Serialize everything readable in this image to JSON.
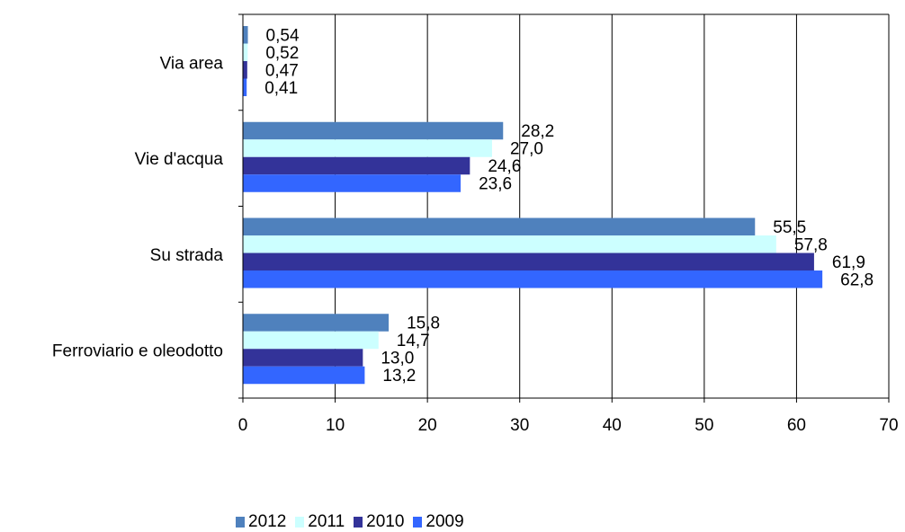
{
  "chart_data": {
    "type": "bar",
    "orientation": "horizontal",
    "title": "",
    "xlabel": "",
    "ylabel": "",
    "xlim": [
      0,
      70
    ],
    "x_ticks": [
      0,
      10,
      20,
      30,
      40,
      50,
      60,
      70
    ],
    "grid": "vertical",
    "legend_position": "bottom",
    "categories": [
      "Via area",
      "Vie d'acqua",
      "Su strada",
      "Ferroviario e oleodotto"
    ],
    "series": [
      {
        "name": "2012",
        "color": "#4f81bd",
        "values": [
          0.54,
          28.2,
          55.5,
          15.8
        ],
        "labels": [
          "0,54",
          "28,2",
          "55,5",
          "15,8"
        ]
      },
      {
        "name": "2011",
        "color": "#ccffff",
        "values": [
          0.52,
          27.0,
          57.8,
          14.7
        ],
        "labels": [
          "0,52",
          "27,0",
          "57,8",
          "14,7"
        ]
      },
      {
        "name": "2010",
        "color": "#333399",
        "values": [
          0.47,
          24.6,
          61.9,
          13.0
        ],
        "labels": [
          "0,47",
          "24,6",
          "61,9",
          "13,0"
        ]
      },
      {
        "name": "2009",
        "color": "#3366ff",
        "values": [
          0.41,
          23.6,
          62.8,
          13.2
        ],
        "labels": [
          "0,41",
          "23,6",
          "62,8",
          "13,2"
        ]
      }
    ]
  }
}
